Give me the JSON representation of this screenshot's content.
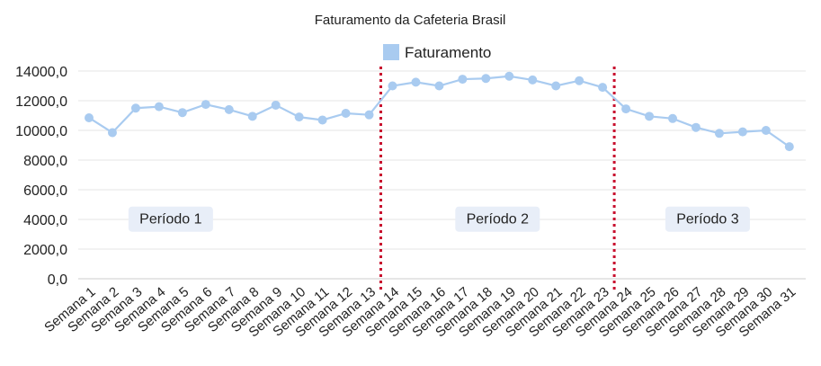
{
  "chart_data": {
    "type": "line",
    "title": "Faturamento da Cafeteria Brasil",
    "legend": "top",
    "grid": true,
    "ylim": [
      0,
      14000
    ],
    "yticks": [
      "0,0",
      "2000,0",
      "4000,0",
      "6000,0",
      "8000,0",
      "10000,0",
      "12000,0",
      "14000,0"
    ],
    "categories": [
      "Semana 1",
      "Semana 2",
      "Semana 3",
      "Semana 4",
      "Semana 5",
      "Semana 6",
      "Semana 7",
      "Semana 8",
      "Semana 9",
      "Semana 10",
      "Semana 11",
      "Semana 12",
      "Semana 13",
      "Semana 14",
      "Semana 15",
      "Semana 16",
      "Semana 17",
      "Semana 18",
      "Semana 19",
      "Semana 20",
      "Semana 21",
      "Semana 22",
      "Semana 23",
      "Semana 24",
      "Semana 25",
      "Semana 26",
      "Semana 27",
      "Semana 28",
      "Semana 29",
      "Semana 30",
      "Semana 31"
    ],
    "series": [
      {
        "name": "Faturamento",
        "color": "#a9cbf0",
        "values": [
          10850,
          9850,
          11500,
          11600,
          11200,
          11750,
          11400,
          10950,
          11700,
          10900,
          10700,
          11150,
          11050,
          13000,
          13250,
          13000,
          13450,
          13500,
          13650,
          13400,
          13000,
          13350,
          12900,
          11450,
          10950,
          10800,
          10200,
          9800,
          9900,
          10000,
          8900
        ]
      }
    ],
    "dividers": [
      {
        "after_category": "Semana 13",
        "color": "#c8102e"
      },
      {
        "after_category": "Semana 23",
        "color": "#c8102e"
      }
    ],
    "annotations": [
      {
        "text": "Período 1",
        "category_center": "Semana 4"
      },
      {
        "text": "Período 2",
        "category_center": "Semana 18"
      },
      {
        "text": "Período 3",
        "category_center": "Semana 27"
      }
    ],
    "annotation_y": 4200,
    "annotation_bg": "#e8eef8"
  }
}
